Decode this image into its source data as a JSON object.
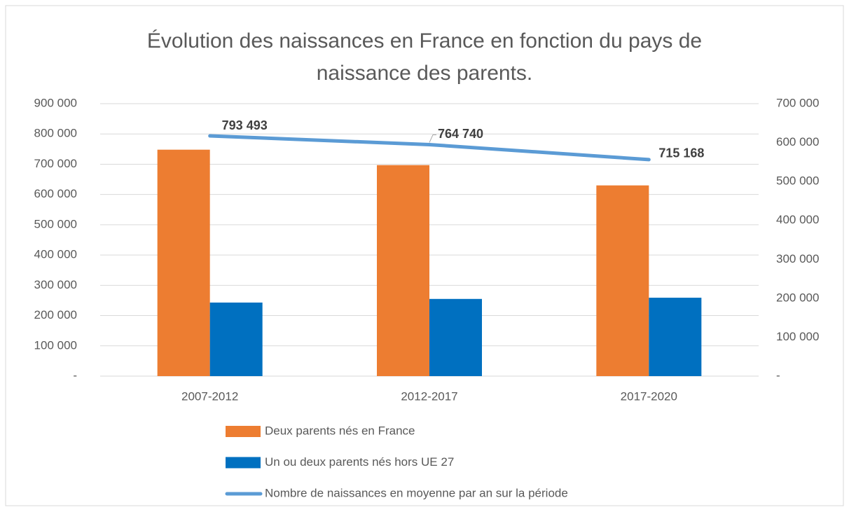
{
  "chart_data": {
    "type": "bar",
    "title": "Évolution des naissances en France en fonction du pays de naissance des parents.",
    "categories": [
      "2007-2012",
      "2012-2017",
      "2017-2020"
    ],
    "series": [
      {
        "name": "Deux parents nés en France",
        "color": "#ED7D31",
        "type": "bar",
        "values": [
          748000,
          697000,
          630000
        ]
      },
      {
        "name": "Un ou deux parents nés hors UE 27",
        "color": "#0070C0",
        "type": "bar",
        "values": [
          243000,
          255000,
          259000
        ]
      },
      {
        "name": "Nombre de naissances en moyenne par an sur la période",
        "color": "#5B9BD5",
        "type": "line",
        "values": [
          793493,
          764740,
          715168
        ],
        "value_labels": [
          "793 493",
          "764 740",
          "715 168"
        ]
      }
    ],
    "ylim": [
      0,
      900000
    ],
    "yticks": [
      {
        "value": 0,
        "label": "-"
      },
      {
        "value": 100000,
        "label": "100 000"
      },
      {
        "value": 200000,
        "label": "200 000"
      },
      {
        "value": 300000,
        "label": "300 000"
      },
      {
        "value": 400000,
        "label": "400 000"
      },
      {
        "value": 500000,
        "label": "500 000"
      },
      {
        "value": 600000,
        "label": "600 000"
      },
      {
        "value": 700000,
        "label": "700 000"
      },
      {
        "value": 800000,
        "label": "800 000"
      },
      {
        "value": 900000,
        "label": "900 000"
      }
    ],
    "y2lim": [
      0,
      700000
    ],
    "y2ticks": [
      {
        "value": 0,
        "label": "-"
      },
      {
        "value": 100000,
        "label": "100 000"
      },
      {
        "value": 200000,
        "label": "200 000"
      },
      {
        "value": 300000,
        "label": "300 000"
      },
      {
        "value": 400000,
        "label": "400 000"
      },
      {
        "value": 500000,
        "label": "500 000"
      },
      {
        "value": 600000,
        "label": "600 000"
      },
      {
        "value": 700000,
        "label": "700 000"
      }
    ],
    "grid": true,
    "legend": "bottom"
  }
}
